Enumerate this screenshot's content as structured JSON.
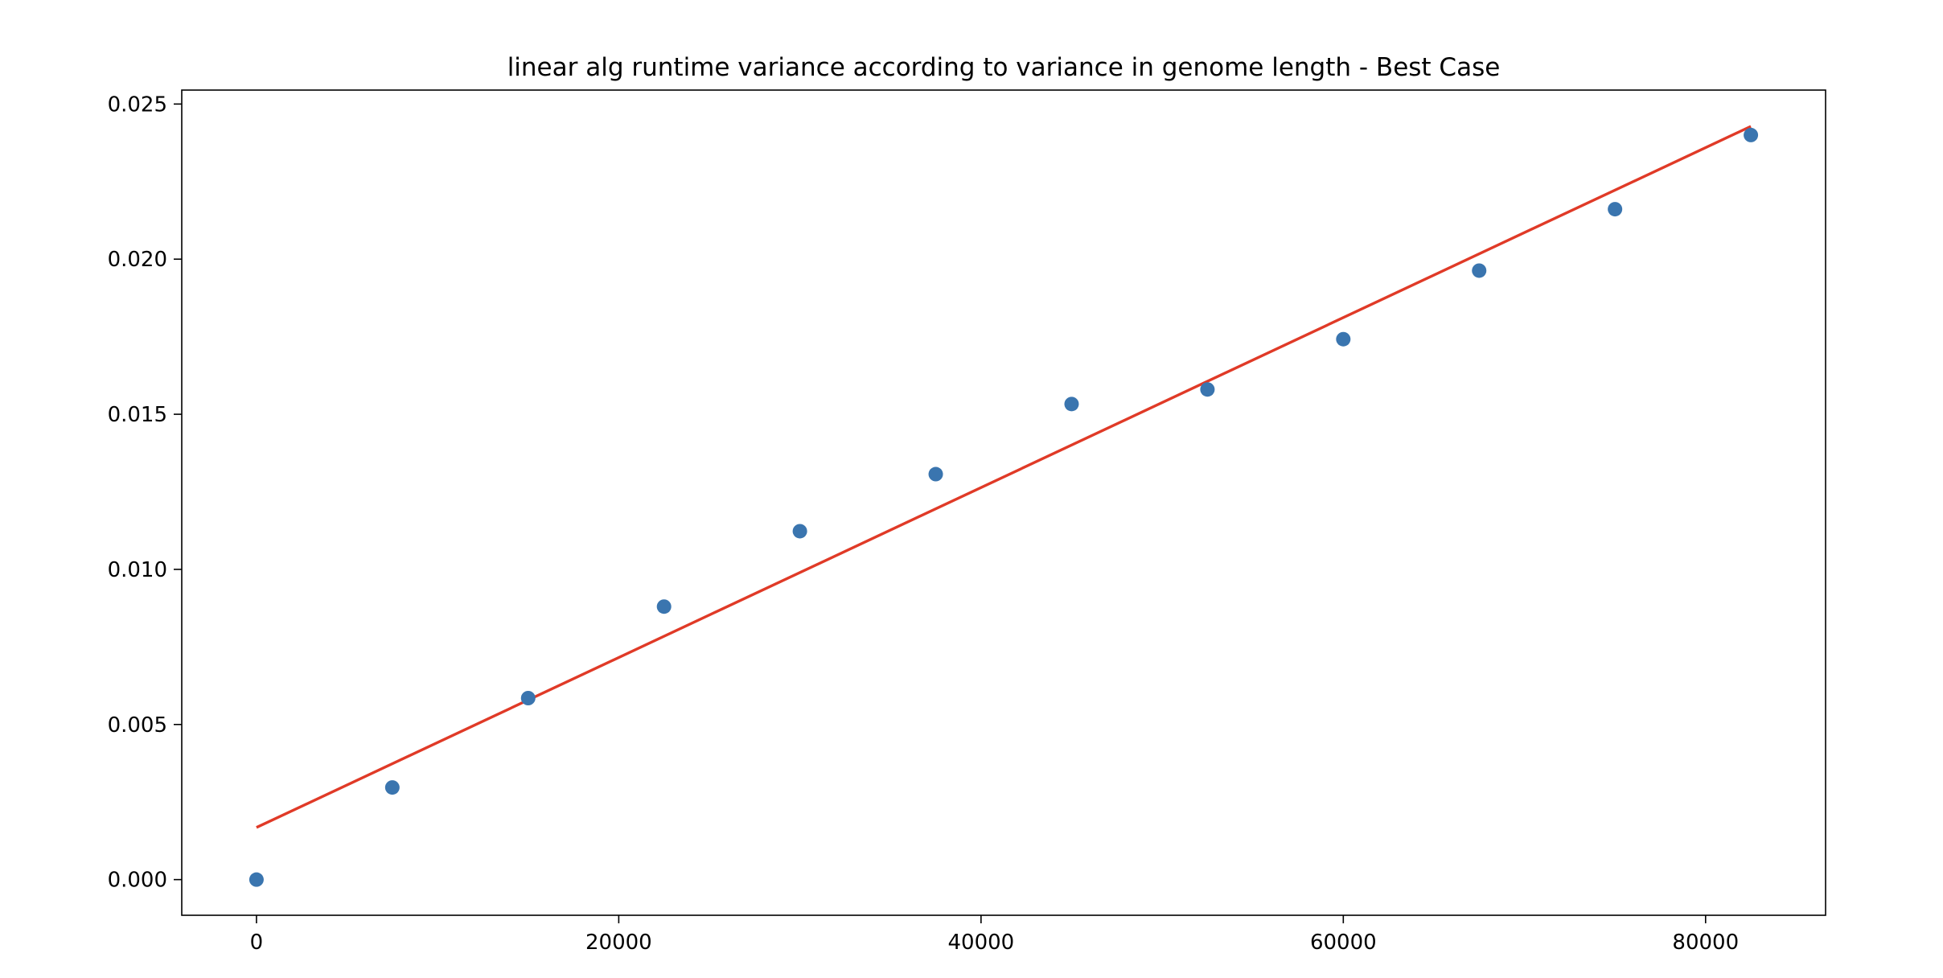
{
  "chart_data": {
    "type": "scatter",
    "title": "linear alg runtime variance according to variance in genome length - Best Case",
    "xlabel": "",
    "ylabel": "",
    "xlim": [
      -4125,
      86625
    ],
    "ylim": [
      -0.00115,
      0.02545
    ],
    "xticks": [
      0,
      20000,
      40000,
      60000,
      80000
    ],
    "xtick_labels": [
      "0",
      "20000",
      "40000",
      "60000",
      "80000"
    ],
    "yticks": [
      0.0,
      0.005,
      0.01,
      0.015,
      0.02,
      0.025
    ],
    "ytick_labels": [
      "0.000",
      "0.005",
      "0.010",
      "0.015",
      "0.020",
      "0.025"
    ],
    "grid": false,
    "legend": "none",
    "series": [
      {
        "type": "scatter",
        "color": "#3a75af",
        "x": [
          0,
          7500,
          15000,
          22500,
          30000,
          37500,
          45000,
          52500,
          60000,
          67500,
          75000,
          82500
        ],
        "y": [
          0.0,
          0.00297,
          0.00585,
          0.0088,
          0.01123,
          0.01307,
          0.01533,
          0.0158,
          0.01742,
          0.01963,
          0.02161,
          0.024
        ]
      },
      {
        "type": "line",
        "color": "#e03a27",
        "x": [
          0,
          82500
        ],
        "y": [
          0.00168,
          0.02428
        ]
      }
    ]
  }
}
